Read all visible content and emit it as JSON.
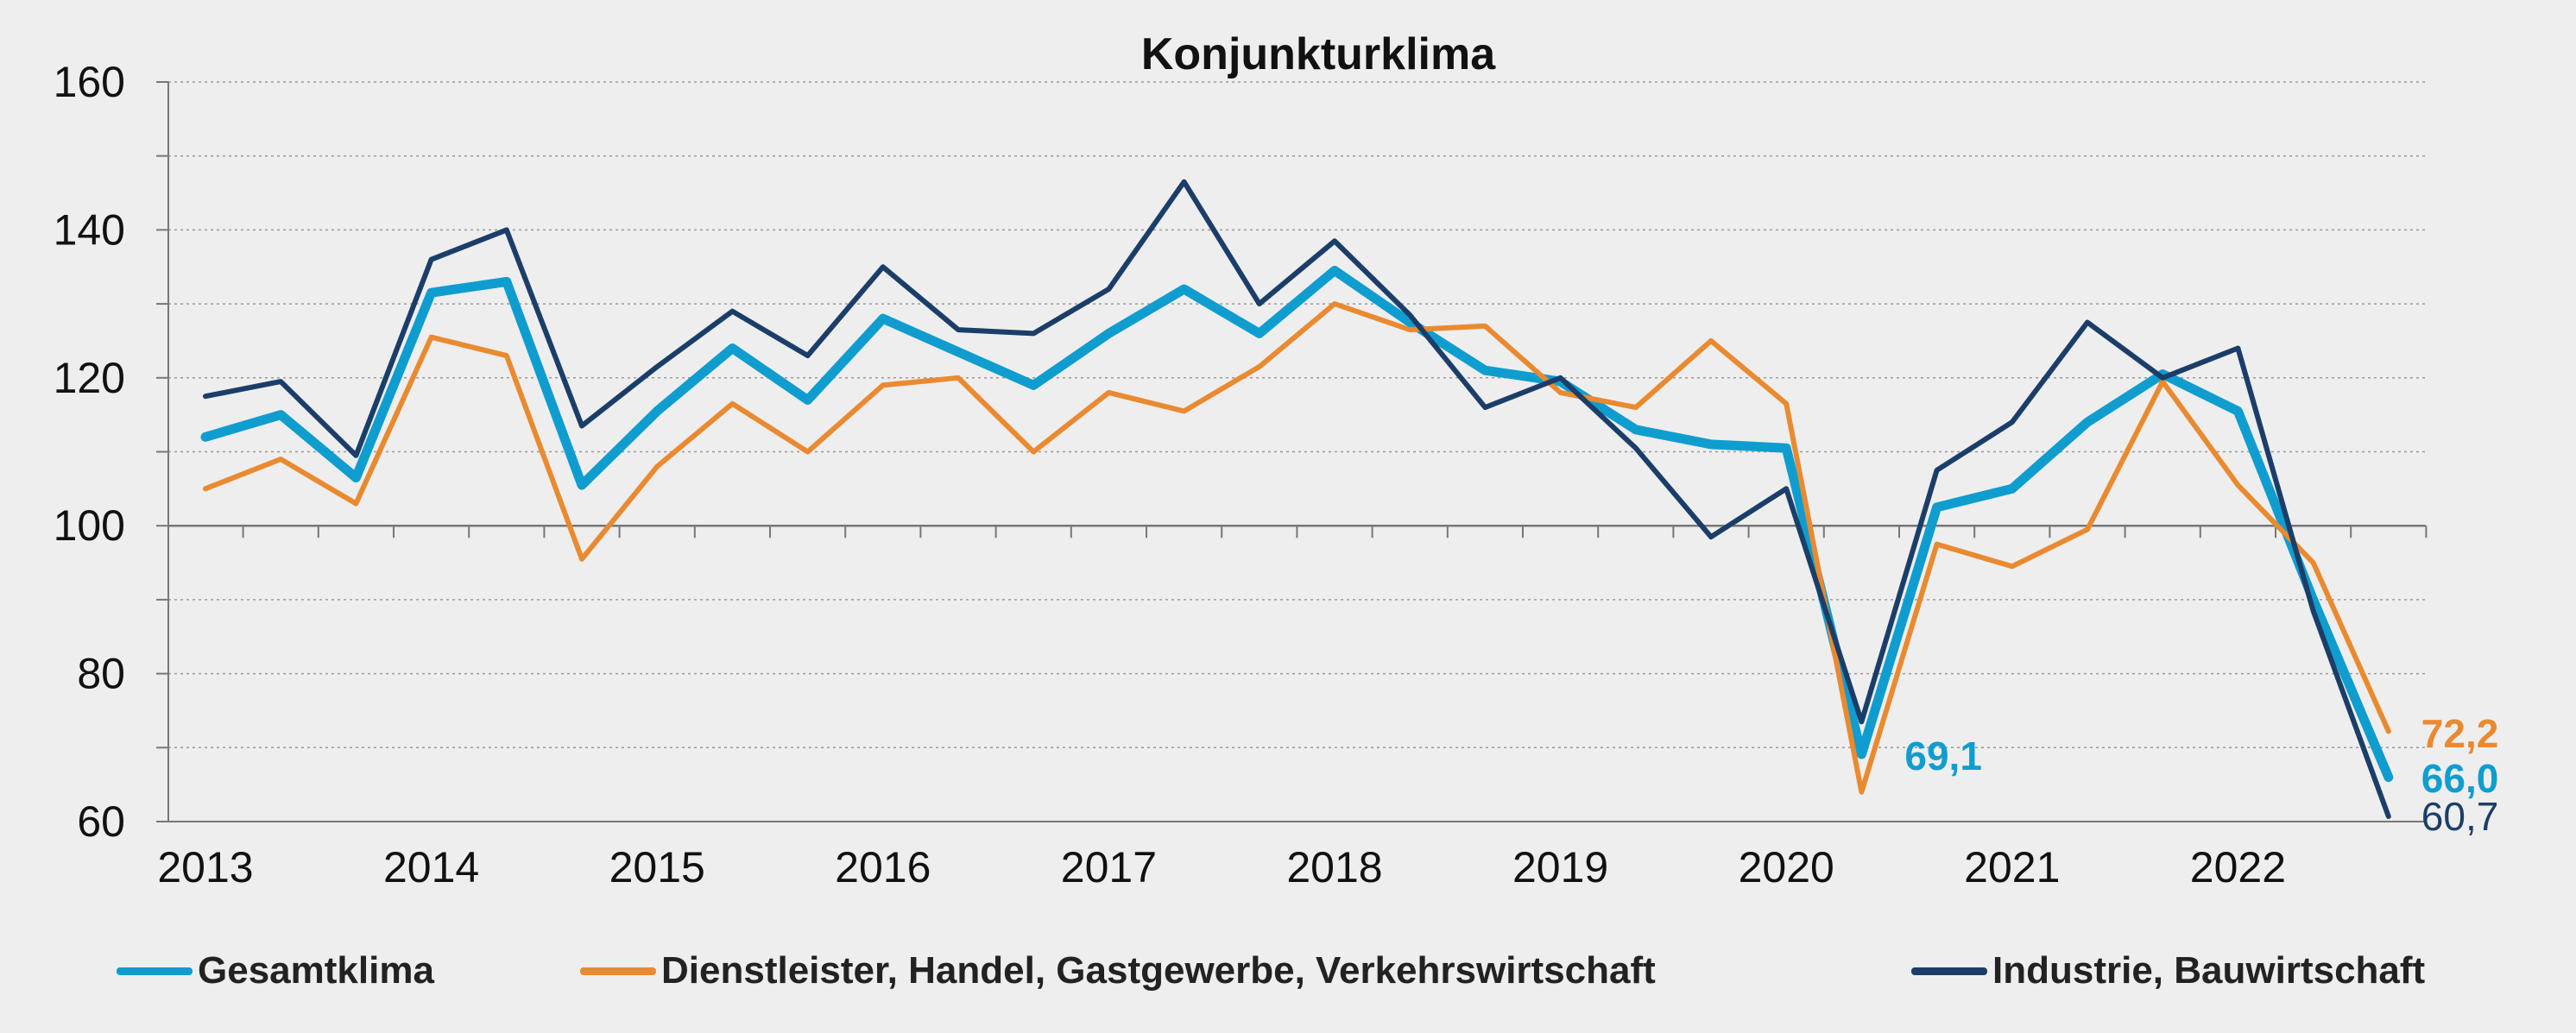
{
  "colors": {
    "background": "#eeeeee",
    "gesamt": "#0f9dcf",
    "dienst": "#ea8a30",
    "industrie": "#1b3e69",
    "grid": "#9a9a9a",
    "axis": "#777777"
  },
  "chart_data": {
    "type": "line",
    "title": "Konjunkturklima",
    "xlabel": "",
    "ylabel": "",
    "ylim": [
      60,
      160
    ],
    "yticks": [
      60,
      80,
      100,
      120,
      140,
      160
    ],
    "grid": "horizontal dotted",
    "year_labels": [
      "2013",
      "2014",
      "2015",
      "2016",
      "2017",
      "2018",
      "2019",
      "2020",
      "2021",
      "2022"
    ],
    "x": [
      "2013 Q1",
      "2013 Q2",
      "2013 Q3",
      "2014 Q1",
      "2014 Q2",
      "2014 Q3",
      "2015 Q1",
      "2015 Q2",
      "2015 Q3",
      "2016 Q1",
      "2016 Q2",
      "2016 Q3",
      "2017 Q1",
      "2017 Q2",
      "2017 Q3",
      "2018 Q1",
      "2018 Q2",
      "2018 Q3",
      "2019 Q1",
      "2019 Q2",
      "2019 Q3",
      "2020 Q1",
      "2020 Q2",
      "2020 Q3",
      "2021 Q1",
      "2021 Q2",
      "2021 Q3",
      "2022 Q1",
      "2022 Q2",
      "2022 Q3"
    ],
    "series": [
      {
        "name": "Gesamtklima",
        "color": "#0f9dcf",
        "values": [
          112,
          115,
          106.5,
          131.5,
          133,
          105.5,
          115.5,
          124,
          117,
          128,
          123.5,
          119,
          126,
          132,
          126,
          134.5,
          127.5,
          121,
          119.5,
          113,
          111,
          110.5,
          69.1,
          102.5,
          105,
          114,
          120.5,
          115.5,
          90,
          66.0
        ],
        "end_label": "66,0",
        "annotation": {
          "index": 22,
          "label": "69,1"
        }
      },
      {
        "name": "Dienstleister, Handel, Gastgewerbe, Verkehrswirtschaft",
        "color": "#ea8a30",
        "values": [
          105,
          109,
          103,
          125.5,
          123,
          95.5,
          108,
          116.5,
          110,
          119,
          120,
          110,
          118,
          115.5,
          121.5,
          130,
          126.5,
          127,
          118,
          116,
          125,
          116.5,
          64,
          97.5,
          94.5,
          99.5,
          119.5,
          105.5,
          95,
          72.2
        ],
        "end_label": "72,2"
      },
      {
        "name": "Industrie, Bauwirtschaft",
        "color": "#1b3e69",
        "values": [
          117.5,
          119.5,
          109.5,
          136,
          140,
          113.5,
          121.5,
          129,
          123,
          135,
          126.5,
          126,
          132,
          146.5,
          130,
          138.5,
          128.5,
          116,
          120,
          110.5,
          98.5,
          105,
          73.5,
          107.5,
          114,
          127.5,
          120,
          124,
          88.5,
          60.7
        ],
        "end_label": "60,7"
      }
    ]
  }
}
